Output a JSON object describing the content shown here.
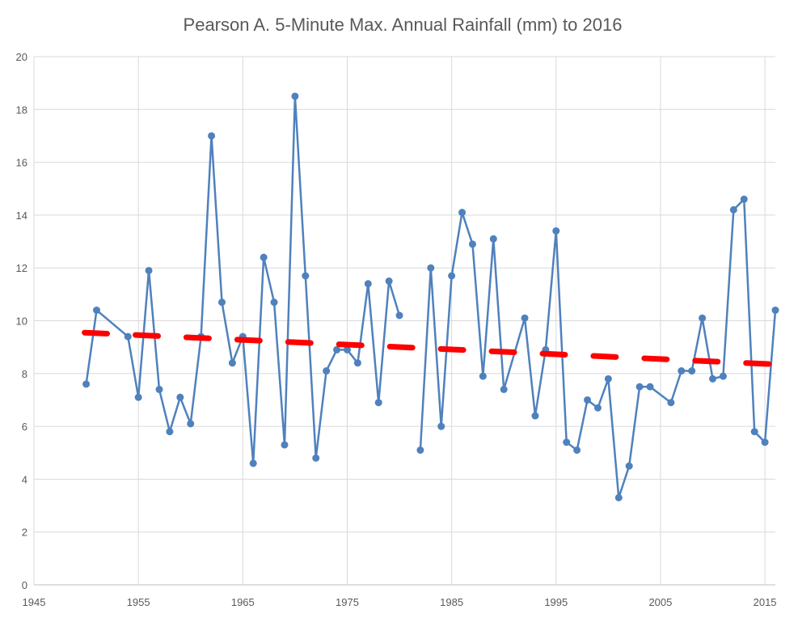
{
  "chart_data": {
    "type": "line",
    "title": "Pearson A. 5-Minute Max. Annual Rainfall (mm) to 2016",
    "xlabel": "",
    "ylabel": "",
    "xlim": [
      1945,
      2016
    ],
    "ylim": [
      0,
      20
    ],
    "xticks": [
      1945,
      1955,
      1965,
      1975,
      1985,
      1995,
      2005,
      2015
    ],
    "yticks": [
      0,
      2,
      4,
      6,
      8,
      10,
      12,
      14,
      16,
      18,
      20
    ],
    "grid": true,
    "legend": "none",
    "colors": {
      "series": "#4F81BD",
      "trend": "#FF0000",
      "grid": "#D9D9D9",
      "axis": "#BFBFBF"
    },
    "series": [
      {
        "points": [
          [
            1950,
            7.6
          ],
          [
            1951,
            10.4
          ],
          [
            1954,
            9.4
          ],
          [
            1955,
            7.1
          ],
          [
            1956,
            11.9
          ],
          [
            1957,
            7.4
          ],
          [
            1958,
            5.8
          ],
          [
            1959,
            7.1
          ],
          [
            1960,
            6.1
          ],
          [
            1961,
            9.4
          ],
          [
            1962,
            17.0
          ],
          [
            1963,
            10.7
          ],
          [
            1964,
            8.4
          ],
          [
            1965,
            9.4
          ],
          [
            1966,
            4.6
          ],
          [
            1967,
            12.4
          ],
          [
            1968,
            10.7
          ],
          [
            1969,
            5.3
          ],
          [
            1970,
            18.5
          ],
          [
            1971,
            11.7
          ],
          [
            1972,
            4.8
          ],
          [
            1973,
            8.1
          ],
          [
            1974,
            8.9
          ],
          [
            1975,
            8.9
          ],
          [
            1976,
            8.4
          ],
          [
            1977,
            11.4
          ],
          [
            1978,
            6.9
          ],
          [
            1979,
            11.5
          ],
          [
            1980,
            10.2
          ],
          null,
          [
            1982,
            5.1
          ],
          [
            1983,
            12.0
          ],
          [
            1984,
            6.0
          ],
          [
            1985,
            11.7
          ],
          [
            1986,
            14.1
          ],
          [
            1987,
            12.9
          ],
          [
            1988,
            7.9
          ],
          [
            1989,
            13.1
          ],
          [
            1990,
            7.4
          ],
          [
            1992,
            10.1
          ],
          [
            1993,
            6.4
          ],
          [
            1994,
            8.9
          ],
          [
            1995,
            13.4
          ],
          [
            1996,
            5.4
          ],
          [
            1997,
            5.1
          ],
          [
            1998,
            7.0
          ],
          [
            1999,
            6.7
          ],
          [
            2000,
            7.8
          ],
          [
            2001,
            3.3
          ],
          [
            2002,
            4.5
          ],
          [
            2003,
            7.5
          ],
          [
            2004,
            7.5
          ],
          [
            2006,
            6.9
          ],
          [
            2007,
            8.1
          ],
          [
            2008,
            8.1
          ],
          [
            2009,
            10.1
          ],
          [
            2010,
            7.8
          ],
          [
            2011,
            7.9
          ],
          [
            2012,
            14.2
          ],
          [
            2013,
            14.6
          ],
          [
            2014,
            5.8
          ],
          [
            2015,
            5.4
          ],
          [
            2016,
            10.4
          ]
        ]
      }
    ],
    "trendline": {
      "type": "linear",
      "from": [
        1950,
        9.55
      ],
      "to": [
        2016,
        8.35
      ],
      "style": "dashed"
    }
  }
}
